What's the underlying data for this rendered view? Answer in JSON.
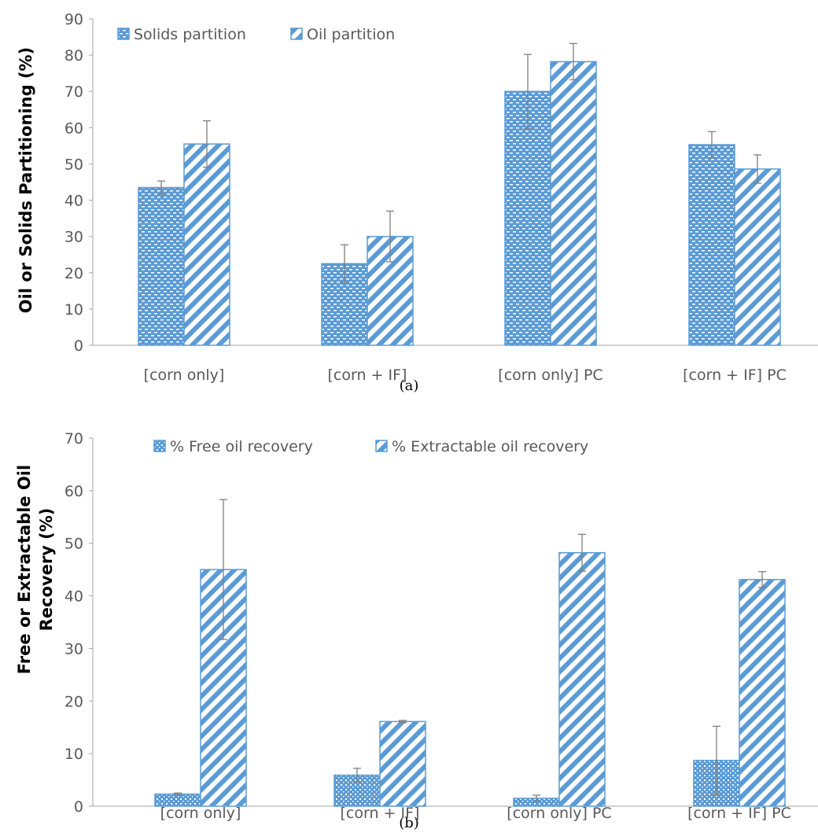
{
  "colors": {
    "bar": "#5B9BD5",
    "axis": "#A6A6A6",
    "text": "#595959",
    "error": "#7F7F7F"
  },
  "chart_data": [
    {
      "type": "bar",
      "panel": "a",
      "caption": "(a)",
      "categories": [
        "[corn only]",
        "[corn + IF]",
        "[corn only] PC",
        "[corn + IF] PC"
      ],
      "ylabel": "Oil or Solids Partitioning (%)",
      "ylim": [
        0,
        90
      ],
      "yticks": [
        0,
        10,
        20,
        30,
        40,
        50,
        60,
        70,
        80,
        90
      ],
      "legend_position": "top-left",
      "series": [
        {
          "name": "Solids partition",
          "pattern": "brick",
          "values": [
            43.5,
            22.5,
            70,
            55.3
          ],
          "errors": [
            1.8,
            5.2,
            10.2,
            3.6
          ]
        },
        {
          "name": "Oil partition",
          "pattern": "diagonal",
          "values": [
            55.5,
            30,
            78.2,
            48.6
          ],
          "errors": [
            6.4,
            7,
            5,
            3.9
          ]
        }
      ]
    },
    {
      "type": "bar",
      "panel": "b",
      "caption": "(b)",
      "categories": [
        "[corn only]",
        "[corn + IF]",
        "[corn only] PC",
        "[corn + IF] PC"
      ],
      "ylabel_lines": [
        "Free or Extractable Oil",
        "Recovery (%)"
      ],
      "ylim": [
        0,
        70
      ],
      "yticks": [
        0,
        10,
        20,
        30,
        40,
        50,
        60,
        70
      ],
      "legend_position": "top",
      "series": [
        {
          "name": "% Free oil recovery",
          "pattern": "dots",
          "values": [
            2.3,
            5.9,
            1.5,
            8.7
          ],
          "errors": [
            0.2,
            1.3,
            0.6,
            6.5
          ]
        },
        {
          "name": "% Extractable oil recovery",
          "pattern": "diagonal",
          "values": [
            45,
            16.1,
            48.2,
            43.1
          ],
          "errors": [
            13.3,
            0.2,
            3.5,
            1.5
          ]
        }
      ]
    }
  ]
}
